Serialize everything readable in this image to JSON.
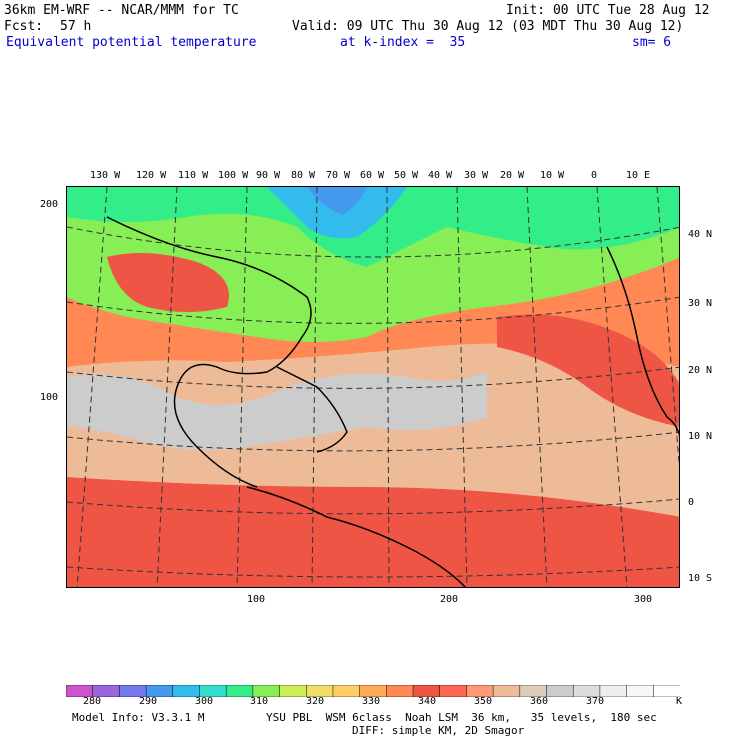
{
  "header": {
    "model": "36km EM-WRF -- NCAR/MMM for TC",
    "init": "Init: 00 UTC Tue 28 Aug 12",
    "fcst_label": "Fcst:",
    "fcst_value": "57 h",
    "valid": "Valid: 09 UTC Thu 30 Aug 12 (03 MDT Thu 30 Aug 12)",
    "field": "Equivalent potential temperature",
    "level": "at k-index =  35",
    "smoothing": "sm= 6"
  },
  "map": {
    "lon_labels": [
      "130 W",
      "120 W",
      "110 W",
      "100 W",
      "90 W",
      "80 W",
      "70 W",
      "60 W",
      "50 W",
      "40 W",
      "30 W",
      "20 W",
      "10 W",
      "0",
      "10 E"
    ],
    "lat_labels": [
      "40 N",
      "30 N",
      "20 N",
      "10 N",
      "0",
      "10 S"
    ],
    "grid_y_labels": [
      "200",
      "100"
    ],
    "grid_x_labels": [
      "100",
      "200",
      "300"
    ]
  },
  "colorbar": {
    "colors": [
      "#cc55cc",
      "#9966dd",
      "#7777ee",
      "#4499ee",
      "#33bbee",
      "#33ddcc",
      "#33ee88",
      "#88ee55",
      "#ccee55",
      "#eedd66",
      "#ffcc66",
      "#ffaa55",
      "#ff8855",
      "#ee5544",
      "#ff6655",
      "#ff9977",
      "#eebb99",
      "#ddccbb",
      "#cccccc",
      "#dddddd",
      "#eeeeee",
      "#f6f6f6",
      "#ffffff"
    ],
    "labels": [
      "280",
      "290",
      "300",
      "310",
      "320",
      "330",
      "340",
      "350",
      "360",
      "370"
    ],
    "units": "K"
  },
  "footer": {
    "model_info": "Model Info: V3.3.1 M",
    "physics": "YSU PBL  WSM 6class  Noah LSM  36 km,   35 levels,  180 sec",
    "diffusion": "DIFF: simple KM, 2D Smagor"
  }
}
